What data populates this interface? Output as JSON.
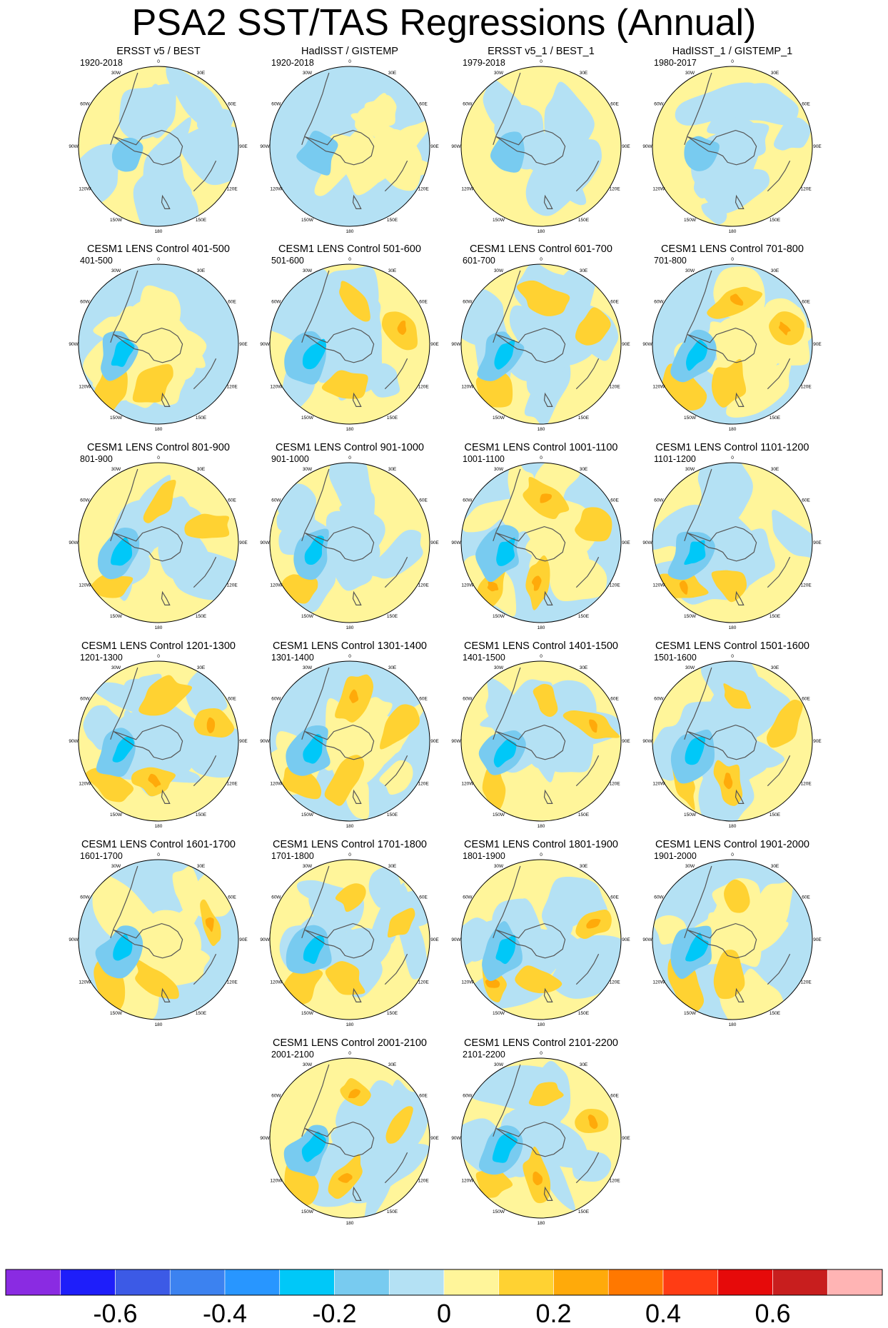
{
  "figure": {
    "title": "PSA2 SST/TAS Regressions (Annual)",
    "longitude_labels": [
      "0",
      "30E",
      "60E",
      "90E",
      "120E",
      "150E",
      "180",
      "150W",
      "120W",
      "90W",
      "60W",
      "30W"
    ]
  },
  "chart_data": {
    "type": "heatmap",
    "projection": "south-polar-stereographic",
    "variable": "SST/TAS regression onto PSA2 index",
    "panels": [
      {
        "title": "ERSST v5 / BEST",
        "period": "1920-2018"
      },
      {
        "title": "HadISST / GISTEMP",
        "period": "1920-2018"
      },
      {
        "title": "ERSST v5_1 / BEST_1",
        "period": "1979-2018"
      },
      {
        "title": "HadISST_1 / GISTEMP_1",
        "period": "1980-2017"
      },
      {
        "title": "CESM1 LENS Control 401-500",
        "period": "401-500"
      },
      {
        "title": "CESM1 LENS Control 501-600",
        "period": "501-600"
      },
      {
        "title": "CESM1 LENS Control 601-700",
        "period": "601-700"
      },
      {
        "title": "CESM1 LENS Control 701-800",
        "period": "701-800"
      },
      {
        "title": "CESM1 LENS Control 801-900",
        "period": "801-900"
      },
      {
        "title": "CESM1 LENS Control 901-1000",
        "period": "901-1000"
      },
      {
        "title": "CESM1 LENS Control 1001-1100",
        "period": "1001-1100"
      },
      {
        "title": "CESM1 LENS Control 1101-1200",
        "period": "1101-1200"
      },
      {
        "title": "CESM1 LENS Control 1201-1300",
        "period": "1201-1300"
      },
      {
        "title": "CESM1 LENS Control 1301-1400",
        "period": "1301-1400"
      },
      {
        "title": "CESM1 LENS Control 1401-1500",
        "period": "1401-1500"
      },
      {
        "title": "CESM1 LENS Control 1501-1600",
        "period": "1501-1600"
      },
      {
        "title": "CESM1 LENS Control 1601-1700",
        "period": "1601-1700"
      },
      {
        "title": "CESM1 LENS Control 1701-1800",
        "period": "1701-1800"
      },
      {
        "title": "CESM1 LENS Control 1801-1900",
        "period": "1801-1900"
      },
      {
        "title": "CESM1 LENS Control 1901-2000",
        "period": "1901-2000"
      },
      {
        "title": "CESM1 LENS Control 2001-2100",
        "period": "2001-2100"
      },
      {
        "title": "CESM1 LENS Control 2101-2200",
        "period": "2101-2200"
      }
    ],
    "colorbar": {
      "colors": [
        "#8a2be2",
        "#1e1efa",
        "#3c5ae6",
        "#3c82f0",
        "#2896ff",
        "#00c8f8",
        "#78cbf0",
        "#b4e1f4",
        "#fff59a",
        "#ffd232",
        "#ffaa0a",
        "#ff7800",
        "#ff3c14",
        "#e60a0a",
        "#c81e1e",
        "#ffb4b4"
      ],
      "boundaries": [
        -0.7,
        -0.6,
        -0.5,
        -0.4,
        -0.3,
        -0.2,
        -0.1,
        0,
        0.1,
        0.2,
        0.3,
        0.4,
        0.5,
        0.6,
        0.7
      ],
      "tick_labels": [
        "-0.6",
        "-0.4",
        "-0.2",
        "0",
        "0.2",
        "0.4",
        "0.6"
      ]
    }
  }
}
